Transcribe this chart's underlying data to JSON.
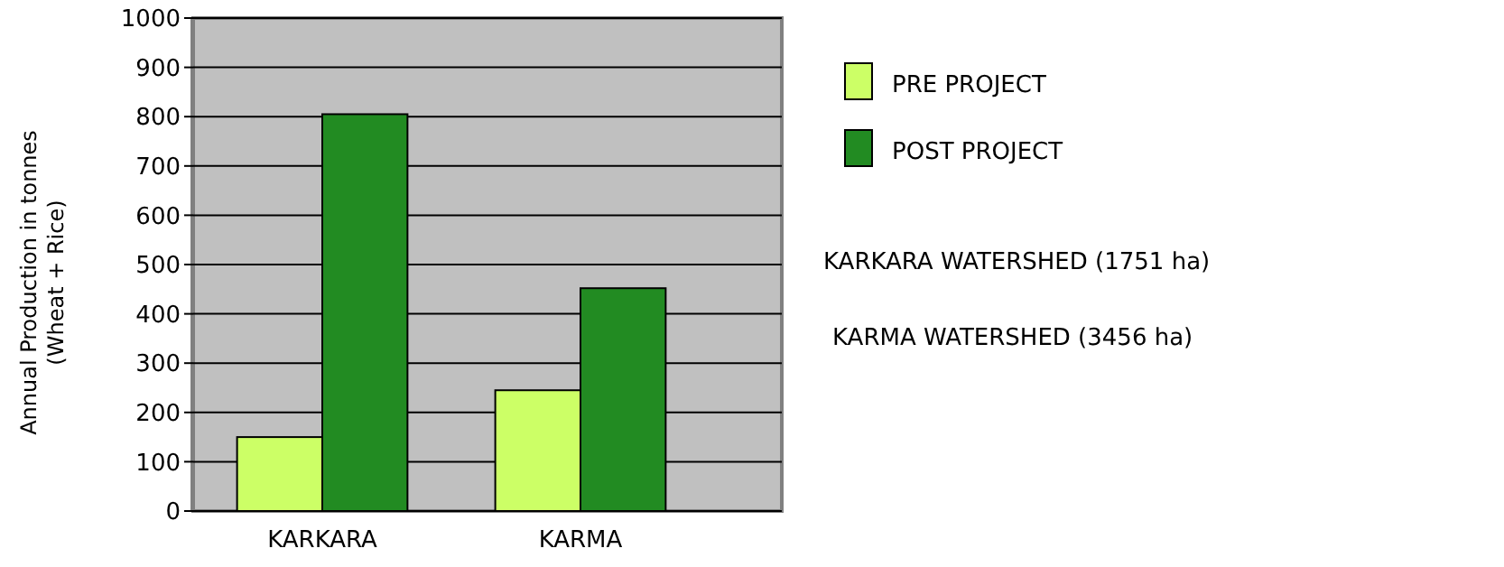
{
  "chart_data": {
    "type": "bar",
    "ylabel": "Annual Production in tonnes\n(Wheat + Rice)",
    "categories": [
      "KARKARA",
      "KARMA"
    ],
    "series": [
      {
        "name": "PRE PROJECT",
        "color": "#ccff66",
        "values": [
          150,
          245
        ]
      },
      {
        "name": "POST PROJECT",
        "color": "#228b22",
        "values": [
          805,
          452
        ]
      }
    ],
    "ylim": [
      0,
      1000
    ],
    "yticks": [
      0,
      100,
      200,
      300,
      400,
      500,
      600,
      700,
      800,
      900,
      1000
    ],
    "grid": "y",
    "legend": "right",
    "annotations": [
      "KARKARA  WATERSHED  (1751 ha)",
      "KARMA  WATERSHED  (3456 ha)"
    ]
  }
}
